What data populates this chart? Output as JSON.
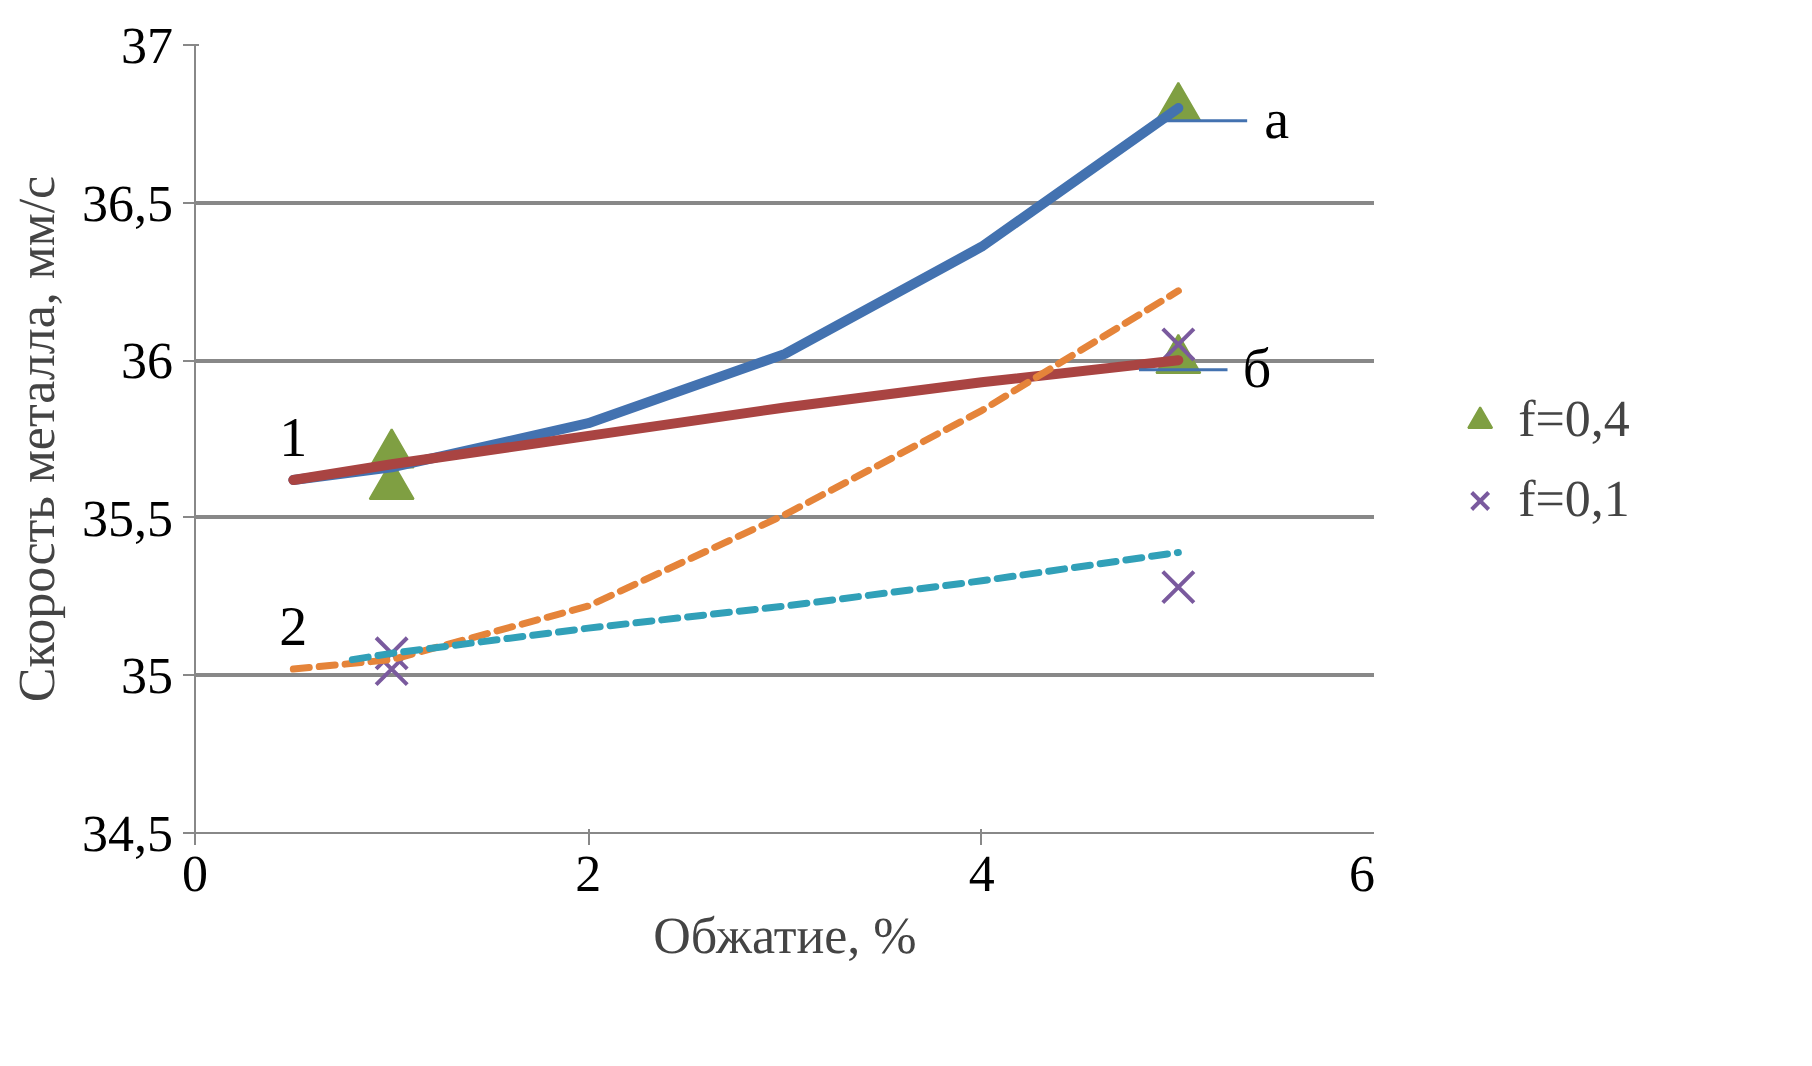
{
  "chart_data": {
    "type": "line",
    "xlabel": "Обжатие, %",
    "ylabel": "Скорость металла, мм/с",
    "xlim": [
      0,
      6
    ],
    "xticks": [
      0,
      2,
      4,
      6
    ],
    "ylim": [
      34.5,
      37
    ],
    "yticks": [
      {
        "value": 34.5,
        "label": "34,5"
      },
      35,
      {
        "value": 35.5,
        "label": "35,5"
      },
      36,
      {
        "value": 36.5,
        "label": "36,5"
      },
      37
    ],
    "grid": "y",
    "legend": "right",
    "marker": "none",
    "series": [
      {
        "color": "#4372b0",
        "line_style": "solid",
        "x": [
          0.5,
          1,
          2,
          3,
          4,
          5
        ],
        "values": [
          35.62,
          35.66,
          35.8,
          36.02,
          36.36,
          36.8
        ]
      },
      {
        "color": "#a94442",
        "line_style": "solid",
        "x": [
          0.5,
          1,
          2,
          3,
          4,
          5
        ],
        "values": [
          35.62,
          35.67,
          35.76,
          35.85,
          35.93,
          36.0
        ]
      },
      {
        "color": "#e5843a",
        "line_style": "dashed",
        "x": [
          0.5,
          1,
          2,
          3,
          4,
          5
        ],
        "values": [
          35.02,
          35.05,
          35.22,
          35.51,
          35.84,
          36.22
        ]
      },
      {
        "color": "#31a0b8",
        "line_style": "dashed",
        "x": [
          0.8,
          1,
          2,
          3,
          4,
          5
        ],
        "values": [
          35.05,
          35.07,
          35.15,
          35.22,
          35.3,
          35.39
        ]
      },
      {
        "type": "scatter",
        "name": "f=0,4",
        "color": "#7f9f42",
        "marker": "triangle",
        "x": [
          1,
          1,
          5,
          5
        ],
        "values": [
          35.7,
          35.6,
          36.8,
          36.0
        ]
      },
      {
        "type": "scatter",
        "name": "f=0,1",
        "color": "#7a5a9e",
        "marker": "cross",
        "x": [
          1,
          1,
          5,
          5
        ],
        "values": [
          35.07,
          35.02,
          36.05,
          35.28
        ]
      }
    ],
    "annotations": [
      {
        "text": "1",
        "x": 0.5,
        "y": 35.62
      },
      {
        "text": "2",
        "x": 0.5,
        "y": 35.02
      },
      {
        "text": "а",
        "x": 4.9,
        "y": 36.76
      },
      {
        "text": "б",
        "x": 4.8,
        "y": 35.97
      }
    ]
  }
}
